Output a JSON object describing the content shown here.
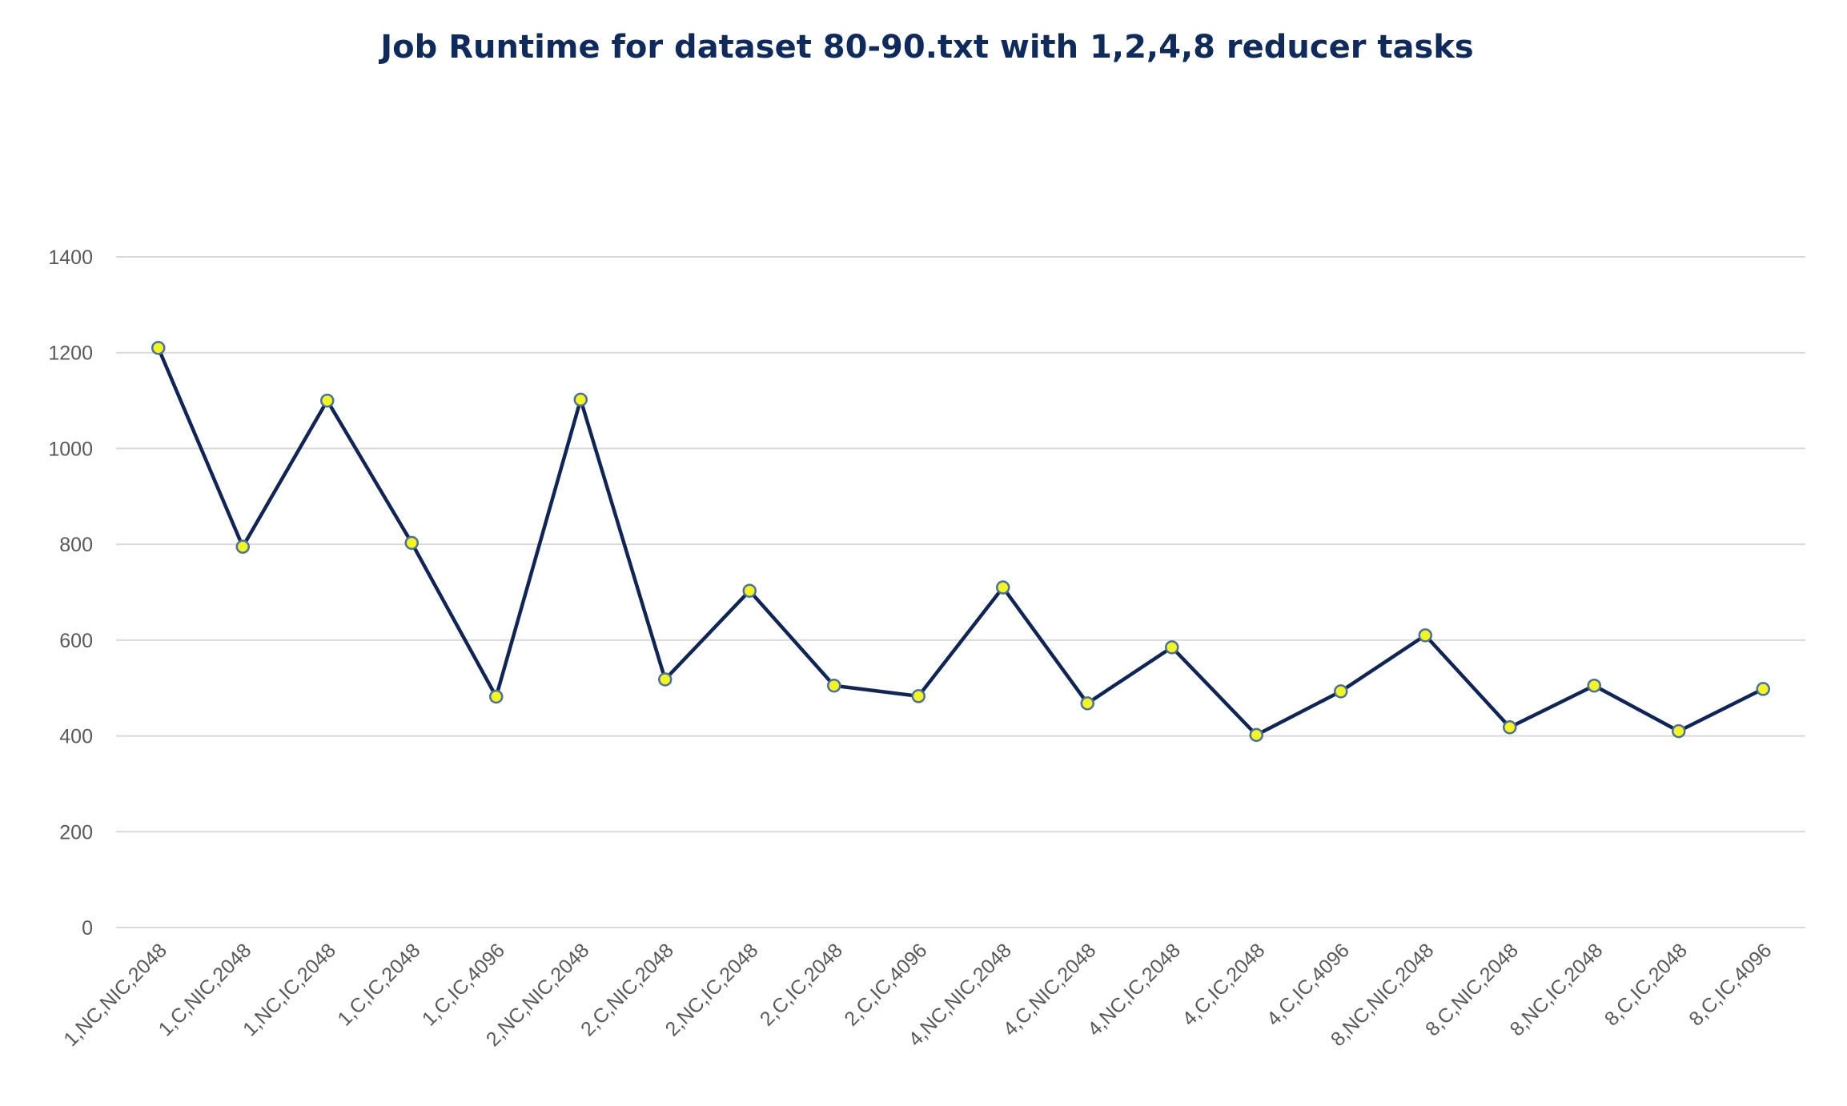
{
  "chart_data": {
    "type": "line",
    "title": "Job Runtime for dataset 80-90.txt with 1,2,4,8 reducer tasks",
    "xlabel": "",
    "ylabel": "",
    "categories": [
      "1,NC,NIC,2048",
      "1,C,NIC,2048",
      "1,NC,IC,2048",
      "1,C,IC,2048",
      "1,C,IC,4096",
      "2,NC,NIC,2048",
      "2,C,NIC,2048",
      "2,NC,IC,2048",
      "2,C,IC,2048",
      "2,C,IC,4096",
      "4,NC,NIC,2048",
      "4,C,NIC,2048",
      "4,NC,IC,2048",
      "4,C,IC,2048",
      "4,C,IC,4096",
      "8,NC,NIC,2048",
      "8,C,NIC,2048",
      "8,NC,IC,2048",
      "8,C,IC,2048",
      "8,C,IC,4096"
    ],
    "series": [
      {
        "values": [
          1210,
          795,
          1100,
          803,
          482,
          1102,
          518,
          703,
          505,
          483,
          710,
          468,
          585,
          402,
          493,
          610,
          418,
          505,
          410,
          498
        ]
      }
    ],
    "ylim": [
      0,
      1400
    ],
    "yticks": [
      "0",
      "200",
      "400",
      "600",
      "800",
      "1000",
      "1200",
      "1400"
    ],
    "grid": true,
    "legend": "none",
    "colors": {
      "line": "#0f2557",
      "marker_fill": "#f5f51e",
      "marker_stroke": "#4a6fa5",
      "gridline": "#d9d9d9",
      "title": "#0f2a5c",
      "tick_text": "#595959"
    }
  }
}
